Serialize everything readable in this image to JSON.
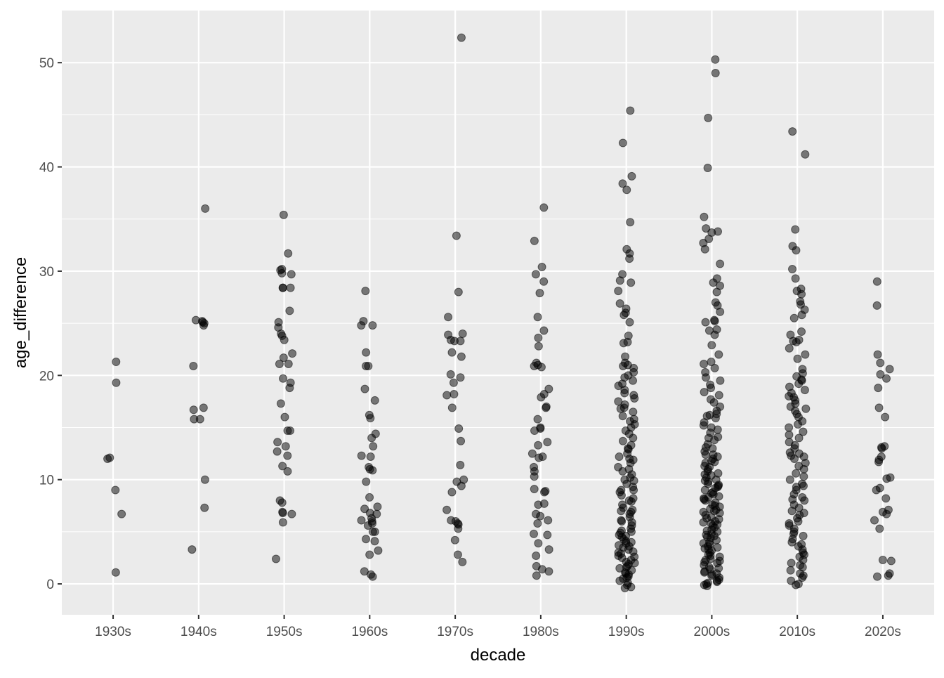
{
  "chart_data": {
    "type": "strip",
    "x_label": "decade",
    "y_label": "age_difference",
    "categories": [
      "1930s",
      "1940s",
      "1950s",
      "1960s",
      "1970s",
      "1980s",
      "1990s",
      "2000s",
      "2010s",
      "2020s"
    ],
    "values": [
      [
        1.1,
        12.1,
        9.0,
        6.7,
        19.3,
        21.3,
        12.0
      ],
      [
        36.0,
        25.2,
        25.0,
        25.1,
        25.3,
        24.8,
        20.9,
        15.8,
        15.8,
        16.7,
        16.9,
        10.0,
        7.3,
        3.3
      ],
      [
        35.4,
        31.7,
        30.2,
        30.1,
        29.8,
        29.7,
        28.4,
        28.4,
        28.4,
        26.2,
        25.1,
        24.6,
        24.0,
        23.8,
        23.4,
        22.1,
        21.7,
        21.1,
        21.1,
        19.7,
        19.3,
        18.8,
        17.3,
        16.0,
        14.7,
        14.7,
        13.6,
        13.2,
        12.7,
        12.3,
        11.3,
        10.8,
        8.0,
        7.8,
        6.9,
        6.8,
        6.7,
        5.9,
        2.4
      ],
      [
        28.1,
        25.2,
        24.8,
        24.8,
        22.2,
        20.9,
        20.9,
        18.7,
        17.6,
        16.2,
        15.9,
        14.4,
        14.0,
        13.2,
        12.3,
        12.2,
        11.2,
        11.0,
        10.9,
        9.8,
        8.3,
        7.4,
        7.2,
        6.8,
        6.7,
        6.3,
        6.1,
        6.0,
        5.8,
        5.6,
        5.0,
        5.0,
        4.3,
        4.1,
        3.2,
        2.8,
        1.2,
        0.9,
        0.7
      ],
      [
        52.4,
        33.4,
        28.0,
        25.6,
        24.0,
        23.9,
        23.4,
        23.3,
        23.3,
        22.2,
        21.8,
        20.1,
        19.8,
        19.3,
        18.2,
        18.1,
        16.9,
        14.9,
        13.7,
        11.4,
        10.0,
        9.8,
        9.4,
        8.8,
        7.1,
        6.1,
        6.0,
        5.8,
        5.7,
        5.3,
        4.2,
        2.8,
        2.1
      ],
      [
        36.1,
        32.9,
        30.4,
        29.7,
        29.0,
        27.9,
        25.6,
        24.3,
        23.6,
        22.8,
        21.2,
        21.0,
        20.9,
        20.8,
        18.7,
        18.2,
        17.9,
        17.0,
        16.9,
        15.8,
        15.0,
        14.9,
        14.7,
        13.6,
        13.3,
        12.5,
        12.2,
        12.1,
        11.2,
        10.8,
        10.3,
        9.1,
        8.9,
        8.8,
        7.7,
        7.6,
        6.7,
        6.5,
        6.1,
        5.8,
        4.8,
        4.7,
        3.9,
        3.3,
        2.7,
        1.7,
        1.4,
        1.2,
        0.8
      ],
      [
        45.4,
        42.3,
        39.1,
        38.4,
        37.8,
        34.7,
        32.1,
        31.7,
        31.2,
        29.7,
        29.1,
        28.9,
        28.1,
        26.9,
        26.4,
        26.0,
        25.8,
        25.1,
        23.8,
        23.2,
        23.1,
        21.8,
        21.2,
        21.0,
        20.9,
        20.7,
        20.3,
        20.0,
        19.8,
        19.5,
        19.2,
        19.0,
        18.6,
        18.3,
        18.1,
        17.8,
        17.5,
        17.2,
        16.9,
        16.8,
        16.5,
        16.1,
        15.8,
        15.6,
        15.3,
        15.0,
        14.7,
        14.4,
        14.0,
        13.7,
        13.3,
        13.0,
        12.9,
        12.5,
        12.2,
        11.9,
        11.6,
        11.2,
        11.0,
        10.8,
        10.5,
        10.2,
        9.9,
        9.6,
        9.3,
        9.0,
        8.8,
        8.5,
        8.2,
        7.9,
        7.6,
        7.3,
        7.1,
        6.9,
        6.7,
        6.4,
        6.1,
        5.9,
        5.6,
        5.3,
        5.1,
        4.9,
        4.7,
        4.5,
        4.3,
        4.1,
        3.9,
        3.7,
        3.5,
        3.3,
        3.1,
        2.9,
        2.7,
        2.5,
        2.3,
        2.1,
        1.9,
        1.7,
        1.5,
        1.3,
        1.1,
        0.9,
        0.7,
        0.5,
        0.3,
        0.1,
        -0.1,
        -0.3,
        -0.4,
        3.0,
        2.0,
        4.0,
        5.0,
        6.0,
        7.0,
        8.0,
        9.0,
        10.0,
        1.0,
        2.6,
        3.6,
        4.6,
        12.0,
        0.6,
        1.6
      ],
      [
        50.3,
        49.0,
        44.7,
        39.9,
        35.2,
        34.1,
        33.8,
        33.7,
        33.1,
        32.7,
        32.1,
        30.7,
        29.3,
        28.9,
        28.6,
        28.0,
        27.0,
        26.7,
        26.1,
        25.3,
        25.2,
        25.1,
        24.4,
        24.3,
        23.9,
        22.9,
        22.0,
        21.3,
        21.1,
        20.7,
        20.3,
        19.8,
        19.5,
        19.1,
        18.8,
        18.4,
        18.1,
        17.7,
        17.4,
        17.0,
        16.6,
        16.3,
        16.2,
        16.1,
        15.9,
        15.5,
        15.2,
        14.8,
        14.5,
        14.1,
        13.8,
        13.4,
        13.1,
        12.7,
        12.4,
        12.0,
        11.7,
        11.3,
        11.0,
        10.8,
        10.5,
        10.2,
        9.9,
        9.6,
        9.3,
        9.0,
        8.7,
        8.4,
        8.1,
        7.8,
        7.5,
        7.2,
        6.9,
        6.6,
        6.3,
        6.0,
        5.7,
        5.4,
        5.1,
        4.8,
        4.5,
        4.2,
        3.9,
        3.6,
        3.3,
        3.0,
        2.7,
        2.4,
        2.1,
        1.8,
        1.5,
        1.2,
        0.9,
        0.6,
        0.3,
        0.0,
        -0.1,
        -0.2,
        0.4,
        1.0,
        1.6,
        2.2,
        2.8,
        3.4,
        4.0,
        4.6,
        5.2,
        5.8,
        6.4,
        7.0,
        7.6,
        8.2,
        8.8,
        9.4,
        10.0,
        10.6,
        11.2,
        11.8,
        12.4,
        13.0,
        14.0,
        15.0,
        0.2,
        0.8,
        1.4,
        2.0,
        2.6,
        3.2,
        3.8,
        4.4,
        5.0,
        5.6,
        6.2,
        6.8,
        7.4,
        8.0,
        8.6,
        9.2,
        9.8,
        10.4,
        11.6,
        12.2,
        0.1,
        1.1,
        2.3,
        3.5,
        4.7,
        5.9,
        7.1,
        8.3,
        9.5
      ],
      [
        43.4,
        41.2,
        34.0,
        32.4,
        32.0,
        30.2,
        29.3,
        28.3,
        28.1,
        27.8,
        27.1,
        26.8,
        26.3,
        25.8,
        25.5,
        24.2,
        23.9,
        23.4,
        23.3,
        23.2,
        22.6,
        22.0,
        21.6,
        20.6,
        20.2,
        19.9,
        19.6,
        19.2,
        18.9,
        18.6,
        18.3,
        18.0,
        17.6,
        17.3,
        17.0,
        16.6,
        16.3,
        16.0,
        15.6,
        15.3,
        15.0,
        14.6,
        14.3,
        14.0,
        13.6,
        13.3,
        13.0,
        12.6,
        12.3,
        12.0,
        11.6,
        11.3,
        11.0,
        10.6,
        10.3,
        10.0,
        9.6,
        9.3,
        9.0,
        8.6,
        8.3,
        8.0,
        7.6,
        7.3,
        7.0,
        6.6,
        6.3,
        6.0,
        5.6,
        5.3,
        5.0,
        4.6,
        4.3,
        4.0,
        3.6,
        3.3,
        3.0,
        2.6,
        2.3,
        2.0,
        1.6,
        1.3,
        1.0,
        0.6,
        0.3,
        0.0,
        -0.1,
        12.2,
        12.5,
        8.1,
        9.4,
        4.8,
        2.8,
        1.8,
        0.8,
        3.8,
        5.8,
        6.8,
        16.8,
        19.5,
        17.9
      ],
      [
        29.0,
        26.7,
        22.0,
        21.2,
        20.6,
        20.1,
        19.7,
        18.8,
        16.9,
        16.0,
        13.2,
        13.1,
        13.0,
        12.2,
        11.9,
        11.7,
        10.2,
        10.1,
        9.2,
        9.0,
        8.2,
        7.1,
        6.9,
        6.7,
        6.1,
        5.3,
        2.3,
        2.2,
        1.0,
        0.8,
        0.7
      ]
    ],
    "color": "#000000",
    "alpha": 0.5,
    "ylim": [
      -2.96,
      55.0
    ],
    "yticks": [
      0,
      10,
      20,
      30,
      40,
      50
    ],
    "yminor": [
      5,
      15,
      25,
      35,
      45
    ],
    "grid": true
  }
}
